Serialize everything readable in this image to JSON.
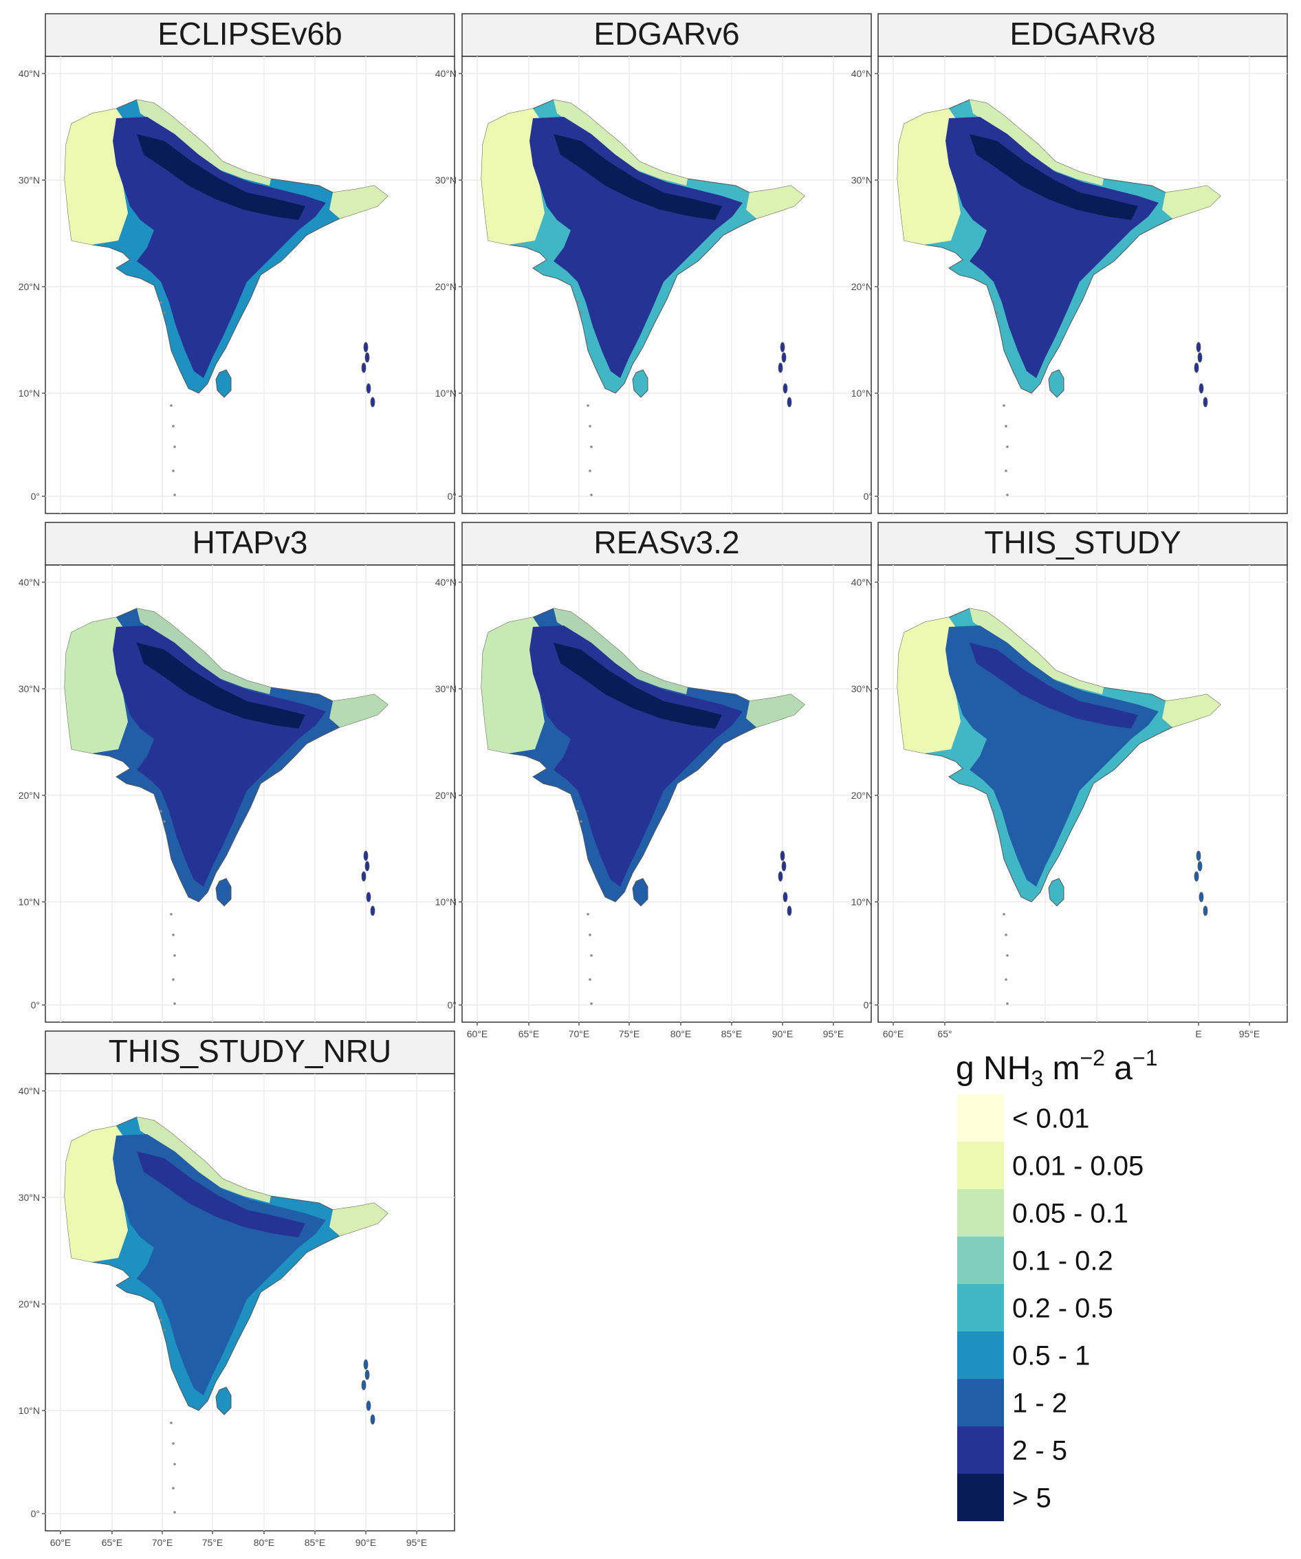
{
  "legend": {
    "title_main": "g NH",
    "title_sub": "3",
    "title_m": " m",
    "title_exp1": "−2",
    "title_a": " a",
    "title_exp2": "−1",
    "classes": [
      {
        "label": "< 0.01",
        "color": "#ffffd9"
      },
      {
        "label": "0.01 - 0.05",
        "color": "#edf8b1"
      },
      {
        "label": "0.05 - 0.1",
        "color": "#c7e9b4"
      },
      {
        "label": "0.1 - 0.2",
        "color": "#7fcdbb"
      },
      {
        "label": "0.2 - 0.5",
        "color": "#41b6c4"
      },
      {
        "label": "0.5 - 1",
        "color": "#1d91c0"
      },
      {
        "label": "1 - 2",
        "color": "#225ea8"
      },
      {
        "label": "2 - 5",
        "color": "#253494"
      },
      {
        "label": "> 5",
        "color": "#081d58"
      }
    ]
  },
  "axes": {
    "lat_ticks": [
      "40°N",
      "30°N",
      "20°N",
      "10°N",
      "0°"
    ],
    "lon_ticks": [
      "60°E",
      "65°E",
      "70°E",
      "75°E",
      "80°E",
      "85°E",
      "90°E",
      "95°E"
    ],
    "lon_ticks_partial": [
      "60°E",
      "65°",
      "E",
      "95°E"
    ]
  },
  "panels": [
    {
      "title": "ECLIPSEv6b",
      "palette": [
        "#edf8b1",
        "#1d91c0",
        "#253494",
        "#081d58"
      ]
    },
    {
      "title": "EDGARv6",
      "palette": [
        "#edf8b1",
        "#41b6c4",
        "#253494",
        "#081d58"
      ]
    },
    {
      "title": "EDGARv8",
      "palette": [
        "#edf8b1",
        "#41b6c4",
        "#253494",
        "#081d58"
      ]
    },
    {
      "title": "HTAPv3",
      "palette": [
        "#c7e9b4",
        "#225ea8",
        "#253494",
        "#081d58"
      ]
    },
    {
      "title": "REASv3.2",
      "palette": [
        "#c7e9b4",
        "#225ea8",
        "#253494",
        "#081d58"
      ]
    },
    {
      "title": "THIS_STUDY",
      "palette": [
        "#edf8b1",
        "#41b6c4",
        "#225ea8",
        "#253494"
      ]
    },
    {
      "title": "THIS_STUDY_NRU",
      "palette": [
        "#edf8b1",
        "#1d91c0",
        "#225ea8",
        "#253494"
      ]
    }
  ]
}
